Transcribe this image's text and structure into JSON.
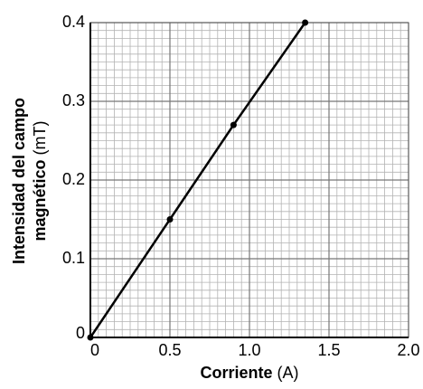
{
  "chart_data": {
    "type": "line",
    "xlabel": "Corriente",
    "xunit": "(A)",
    "ylabel": [
      "Intensidad del campo",
      "magnético"
    ],
    "yunit": "(mT)",
    "x": [
      0,
      0.5,
      0.9,
      1.35
    ],
    "series": [
      {
        "color": "#000000",
        "values": [
          0,
          0.15,
          0.27,
          0.4
        ]
      }
    ],
    "xlim": [
      0,
      2
    ],
    "xticks": [
      0,
      0.5,
      {
        "value": 1,
        "label": "1.0"
      },
      1.5,
      {
        "value": 2,
        "label": "2.0"
      }
    ],
    "ylim": [
      0,
      0.4
    ],
    "yticks": [
      0,
      0.1,
      0.2,
      0.3,
      0.4
    ],
    "grid": true,
    "minor_grid": {
      "x": 0.05,
      "y": 0.01
    }
  }
}
